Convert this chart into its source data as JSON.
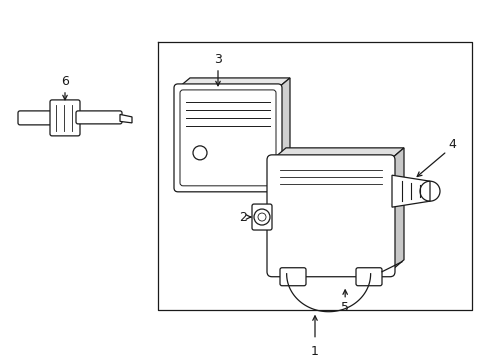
{
  "bg_color": "#ffffff",
  "line_color": "#1a1a1a",
  "fig_width": 4.89,
  "fig_height": 3.6,
  "dpi": 100,
  "font_size": 9,
  "lw": 0.9
}
